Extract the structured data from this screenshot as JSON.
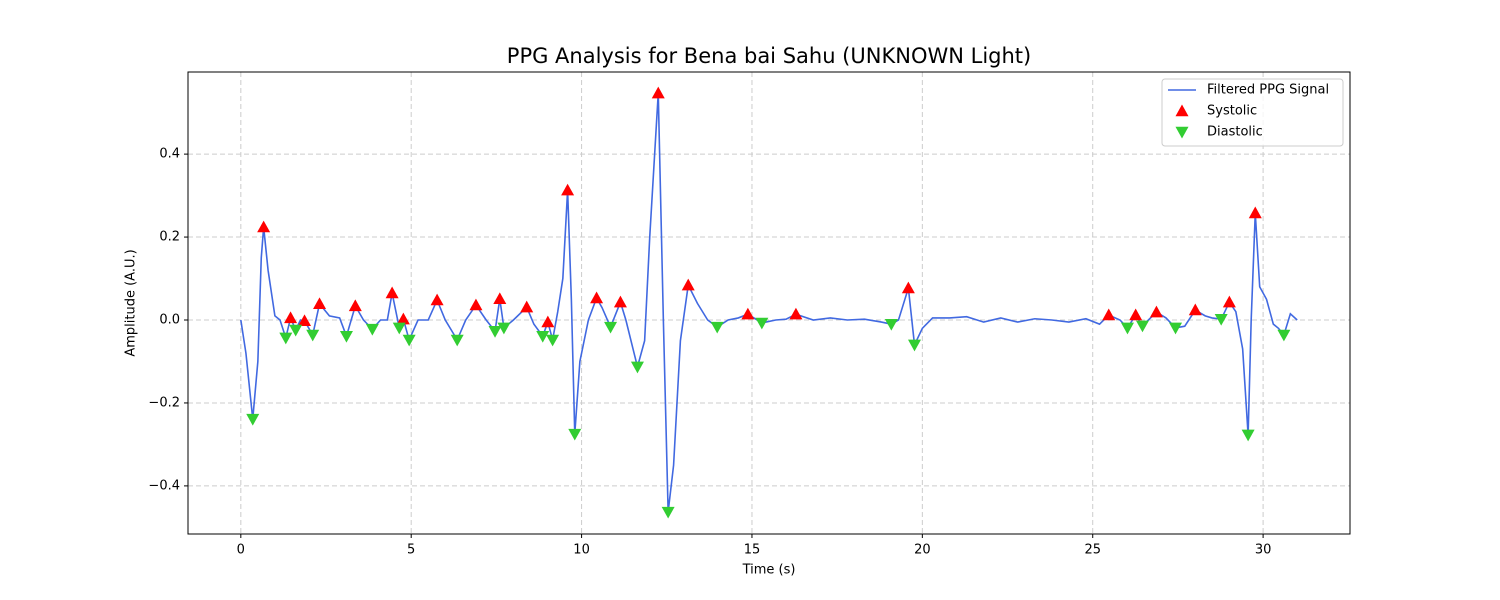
{
  "chart_data": {
    "type": "line",
    "title": "PPG Analysis for Bena bai Sahu (UNKNOWN Light)",
    "x_label": "Time (s)",
    "y_label": "Amplitude (A.U.)",
    "xlim": [
      -1.55,
      32.55
    ],
    "ylim": [
      -0.516,
      0.598
    ],
    "xticks": [
      0,
      5,
      10,
      15,
      20,
      25,
      30
    ],
    "yticks": [
      {
        "value": -0.4,
        "label": "−0.4"
      },
      {
        "value": -0.2,
        "label": "−0.2"
      },
      {
        "value": 0,
        "label": "0.0"
      },
      0.2,
      0.4
    ],
    "grid": true,
    "legend": "upper right",
    "series": [
      {
        "name": "Filtered PPG Signal",
        "kind": "line",
        "color": "#4169e1",
        "x": [
          0,
          0.15,
          0.35,
          0.5,
          0.6,
          0.67,
          0.8,
          1.0,
          1.15,
          1.32,
          1.46,
          1.61,
          1.75,
          1.87,
          2.11,
          2.31,
          2.6,
          2.9,
          3.1,
          3.36,
          3.6,
          3.86,
          4.1,
          4.3,
          4.44,
          4.65,
          4.77,
          4.94,
          5.2,
          5.5,
          5.76,
          6.0,
          6.35,
          6.6,
          6.9,
          7.2,
          7.46,
          7.6,
          7.72,
          8.0,
          8.39,
          8.6,
          8.86,
          9.01,
          9.15,
          9.3,
          9.45,
          9.59,
          9.7,
          9.8,
          9.95,
          10.2,
          10.44,
          10.6,
          10.85,
          11.14,
          11.3,
          11.64,
          11.85,
          12.0,
          12.25,
          12.4,
          12.54,
          12.7,
          12.9,
          13.13,
          13.4,
          13.7,
          13.98,
          14.3,
          14.6,
          14.88,
          15.29,
          15.7,
          16.0,
          16.29,
          16.8,
          17.3,
          17.8,
          18.3,
          18.8,
          19.09,
          19.3,
          19.59,
          19.77,
          20.0,
          20.3,
          20.8,
          21.3,
          21.8,
          22.3,
          22.8,
          23.3,
          23.8,
          24.3,
          24.8,
          25.2,
          25.47,
          25.8,
          26.02,
          26.26,
          26.46,
          26.87,
          27.15,
          27.43,
          27.7,
          28.01,
          28.3,
          28.5,
          28.77,
          29.01,
          29.2,
          29.4,
          29.56,
          29.65,
          29.77,
          29.9,
          30.1,
          30.3,
          30.45,
          30.61,
          30.8,
          31.0
        ],
        "values": [
          0,
          -0.08,
          -0.239,
          -0.1,
          0.15,
          0.224,
          0.12,
          0.01,
          0,
          -0.043,
          0.005,
          -0.024,
          0,
          -0.002,
          -0.036,
          0.039,
          0.01,
          0.005,
          -0.039,
          0.034,
          0,
          -0.022,
          0,
          0,
          0.065,
          -0.019,
          0.002,
          -0.048,
          0,
          0,
          0.048,
          0,
          -0.048,
          0,
          0.036,
          0,
          -0.027,
          0.051,
          -0.019,
          0,
          0.031,
          -0.01,
          -0.039,
          -0.005,
          -0.048,
          0.02,
          0.1,
          0.313,
          0.05,
          -0.275,
          -0.1,
          0,
          0.053,
          0.03,
          -0.017,
          0.043,
          0,
          -0.113,
          -0.05,
          0.2,
          0.547,
          0,
          -0.463,
          -0.35,
          -0.05,
          0.084,
          0.04,
          0,
          -0.017,
          0,
          0.005,
          0.014,
          -0.007,
          0,
          0.002,
          0.014,
          0,
          0.005,
          0,
          0.002,
          -0.005,
          -0.01,
          0,
          0.077,
          -0.06,
          -0.02,
          0.005,
          0.005,
          0.008,
          -0.005,
          0.005,
          -0.005,
          0.003,
          0,
          -0.005,
          0.003,
          -0.01,
          0.012,
          0,
          -0.019,
          0.012,
          -0.014,
          0.019,
          0.005,
          -0.019,
          -0.015,
          0.024,
          0.01,
          0.005,
          0.002,
          0.043,
          0.02,
          -0.07,
          -0.277,
          0,
          0.258,
          0.08,
          0.05,
          -0.01,
          -0.02,
          -0.036,
          0.015,
          0
        ]
      },
      {
        "name": "Systolic",
        "kind": "scatter",
        "marker": "up",
        "color": "#ff0000",
        "x": [
          0.67,
          1.46,
          1.87,
          2.31,
          3.36,
          4.44,
          4.77,
          5.76,
          6.9,
          7.6,
          8.39,
          9.01,
          9.59,
          10.44,
          11.14,
          12.25,
          13.13,
          14.88,
          16.29,
          19.59,
          25.47,
          26.26,
          26.87,
          28.01,
          29.01,
          29.77
        ],
        "values": [
          0.224,
          0.005,
          -0.002,
          0.039,
          0.034,
          0.065,
          0.002,
          0.048,
          0.036,
          0.051,
          0.031,
          -0.005,
          0.313,
          0.053,
          0.043,
          0.547,
          0.084,
          0.014,
          0.014,
          0.077,
          0.012,
          0.012,
          0.019,
          0.024,
          0.043,
          0.258
        ]
      },
      {
        "name": "Diastolic",
        "kind": "scatter",
        "marker": "down",
        "color": "#32cd32",
        "x": [
          0.35,
          1.32,
          1.61,
          2.11,
          3.1,
          3.86,
          4.65,
          4.94,
          6.35,
          7.46,
          7.72,
          8.86,
          9.15,
          9.8,
          10.85,
          11.64,
          12.54,
          13.98,
          15.29,
          19.09,
          19.77,
          26.02,
          26.46,
          27.43,
          28.77,
          29.56,
          30.61
        ],
        "values": [
          -0.239,
          -0.043,
          -0.024,
          -0.036,
          -0.039,
          -0.022,
          -0.019,
          -0.048,
          -0.048,
          -0.027,
          -0.019,
          -0.039,
          -0.048,
          -0.275,
          -0.017,
          -0.113,
          -0.463,
          -0.017,
          -0.007,
          -0.01,
          -0.06,
          -0.019,
          -0.014,
          -0.019,
          0.002,
          -0.277,
          -0.036
        ]
      }
    ]
  }
}
